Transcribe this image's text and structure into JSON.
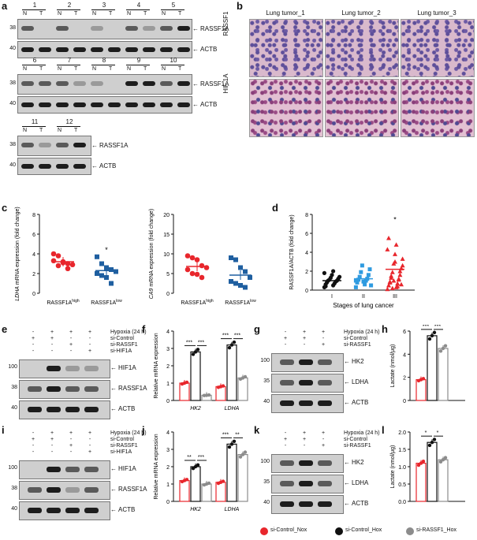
{
  "panels": {
    "a": {
      "letter": "a",
      "lanes_row1": [
        "1",
        "2",
        "3",
        "4",
        "5"
      ],
      "lanes_row2": [
        "6",
        "7",
        "8",
        "9",
        "10"
      ],
      "lanes_row3": [
        "11",
        "12"
      ],
      "nt": [
        "N",
        "T"
      ],
      "mw": [
        "38",
        "40"
      ],
      "target": "RASSF1A",
      "loading": "ACTB"
    },
    "b": {
      "letter": "b",
      "columns": [
        "Lung tumor_1",
        "Lung tumor_2",
        "Lung tumor_3"
      ],
      "rows": [
        "RASSF1",
        "HIF 1A"
      ]
    },
    "c": {
      "letter": "c",
      "left": {
        "ylabel_gene": "LDHA",
        "ylabel_rest": " mRNA expression (fold change)",
        "yticks": [
          "0",
          "2",
          "4",
          "6",
          "8"
        ],
        "xlabels": [
          "RASSF1A",
          "RASSF1A"
        ],
        "xsup": [
          "high",
          "low"
        ],
        "star": "*"
      },
      "right": {
        "ylabel_gene": "CA9",
        "ylabel_rest": " mRNA expression (fold change)",
        "yticks": [
          "0",
          "5",
          "10",
          "15",
          "20"
        ],
        "xlabels": [
          "RASSF1A",
          "RASSF1A"
        ],
        "xsup": [
          "high",
          "low"
        ]
      }
    },
    "d": {
      "letter": "d",
      "ylabel": "RASSF1A/ACTB (fold change)",
      "yticks": [
        "0",
        "2",
        "4",
        "6",
        "8"
      ],
      "xlabels": [
        "I",
        "II",
        "III"
      ],
      "xtitle": "Stages of lung cancer",
      "star": "*"
    },
    "e": {
      "letter": "e",
      "conditions": [
        "Hypoxia (24 h)",
        "si-Control",
        "si-RASSF1",
        "si-HIF1A"
      ],
      "mw": [
        "100",
        "38",
        "40"
      ],
      "bands": [
        "HIF1A",
        "RASSF1A",
        "ACTB"
      ]
    },
    "f": {
      "letter": "f",
      "ylabel": "Relative mRNA expression",
      "yticks": [
        "0",
        "1",
        "2",
        "3",
        "4"
      ],
      "genes": [
        "HK2",
        "LDHA"
      ],
      "sig_hk2": [
        "***",
        "***"
      ],
      "sig_ldha": [
        "***",
        "***"
      ]
    },
    "g": {
      "letter": "g",
      "conditions": [
        "Hypoxia (24 h)",
        "si-Control",
        "si-RASSF1"
      ],
      "mw": [
        "100",
        "35",
        "40"
      ],
      "bands": [
        "HK2",
        "LDHA",
        "ACTB"
      ]
    },
    "h": {
      "letter": "h",
      "ylabel": "Lactate (nmol/μg)",
      "yticks": [
        "0",
        "2",
        "4",
        "6"
      ],
      "sig": [
        "***",
        "***"
      ]
    },
    "i": {
      "letter": "i",
      "conditions": [
        "Hypoxia (24 h)",
        "si-Control",
        "si-RASSF1",
        "si-HIF1A"
      ],
      "mw": [
        "100",
        "38",
        "40"
      ],
      "bands": [
        "HIF1A",
        "RASSF1A",
        "ACTB"
      ]
    },
    "j": {
      "letter": "j",
      "ylabel": "Relative mRNA expression",
      "yticks": [
        "0",
        "1",
        "2",
        "3",
        "4"
      ],
      "genes": [
        "HK2",
        "LDHA"
      ],
      "sig_hk2": [
        "**",
        "***"
      ],
      "sig_ldha": [
        "***",
        "**"
      ]
    },
    "k": {
      "letter": "k",
      "conditions": [
        "Hypoxia (24 h)",
        "si-Control",
        "si-RASSF1"
      ],
      "mw": [
        "100",
        "35",
        "40"
      ],
      "bands": [
        "HK2",
        "LDHA",
        "ACTB"
      ]
    },
    "l": {
      "letter": "l",
      "ylabel": "Lactate (nmol/μg)",
      "yticks": [
        "0.0",
        "0.5",
        "1.0",
        "1.5",
        "2.0"
      ],
      "sig": [
        "*",
        "*"
      ]
    }
  },
  "legend": {
    "items": [
      {
        "label": "si-Control_Nox",
        "color": "#e8262c"
      },
      {
        "label": "si-Control_Hox",
        "color": "#111111"
      },
      {
        "label": "si-RASSF1_Hox",
        "color": "#8c8c8c"
      }
    ]
  },
  "chart_data": [
    {
      "type": "scatter",
      "panel": "c-left",
      "categories": [
        "RASSF1A high",
        "RASSF1A low"
      ],
      "series": [
        {
          "values": [
            [
              4.0,
              3.8,
              3.2,
              3.0,
              2.9,
              3.3,
              2.8,
              3.1,
              2.5
            ]
          ]
        },
        {
          "values": [
            [
              3.7,
              3.0,
              2.6,
              2.4,
              2.2,
              2.0,
              1.8,
              1.6,
              1.0
            ]
          ]
        }
      ],
      "means": [
        3.2,
        2.3
      ],
      "ylim": [
        0,
        8
      ],
      "ylabel": "LDHA mRNA expression (fold change)"
    },
    {
      "type": "scatter",
      "panel": "c-right",
      "categories": [
        "RASSF1A high",
        "RASSF1A low"
      ],
      "series": [
        {
          "values": [
            [
              9.5,
              9.0,
              8.5,
              7.0,
              6.5,
              6.0,
              5.0,
              4.8,
              4.0
            ]
          ]
        },
        {
          "values": [
            [
              9.0,
              8.5,
              6.5,
              5.5,
              4.0,
              3.0,
              2.5,
              2.0,
              1.5
            ]
          ]
        }
      ],
      "means": [
        6.8,
        4.6
      ],
      "ylim": [
        0,
        20
      ],
      "ylabel": "CA9 mRNA expression (fold change)"
    },
    {
      "type": "scatter",
      "panel": "d",
      "categories": [
        "I",
        "II",
        "III"
      ],
      "means": [
        1.0,
        1.2,
        2.2
      ],
      "ylim": [
        0,
        8
      ],
      "ylabel": "RASSF1A/ACTB (fold change)"
    },
    {
      "type": "bar",
      "panel": "f",
      "categories": [
        "HK2",
        "LDHA"
      ],
      "series": [
        {
          "name": "si-Control_Nox",
          "values": [
            1.0,
            0.8
          ]
        },
        {
          "name": "si-Control_Hox",
          "values": [
            2.8,
            3.2
          ]
        },
        {
          "name": "si-RASSF1_Hox",
          "values": [
            0.3,
            1.3
          ]
        }
      ],
      "ylim": [
        0,
        4
      ]
    },
    {
      "type": "bar",
      "panel": "h",
      "categories": [
        ""
      ],
      "series": [
        {
          "name": "si-Control_Nox",
          "values": [
            1.8
          ]
        },
        {
          "name": "si-Control_Hox",
          "values": [
            5.6
          ]
        },
        {
          "name": "si-RASSF1_Hox",
          "values": [
            4.5
          ]
        }
      ],
      "ylim": [
        0,
        6
      ]
    },
    {
      "type": "bar",
      "panel": "j",
      "categories": [
        "HK2",
        "LDHA"
      ],
      "series": [
        {
          "name": "si-Control_Nox",
          "values": [
            1.2,
            1.1
          ]
        },
        {
          "name": "si-Control_Hox",
          "values": [
            2.0,
            3.3
          ]
        },
        {
          "name": "si-RASSF1_Hox",
          "values": [
            1.0,
            2.7
          ]
        }
      ],
      "ylim": [
        0,
        4
      ]
    },
    {
      "type": "bar",
      "panel": "l",
      "categories": [
        ""
      ],
      "series": [
        {
          "name": "si-Control_Nox",
          "values": [
            1.1
          ]
        },
        {
          "name": "si-Control_Hox",
          "values": [
            1.7
          ]
        },
        {
          "name": "si-RASSF1_Hox",
          "values": [
            1.2
          ]
        }
      ],
      "ylim": [
        0,
        2
      ]
    }
  ]
}
